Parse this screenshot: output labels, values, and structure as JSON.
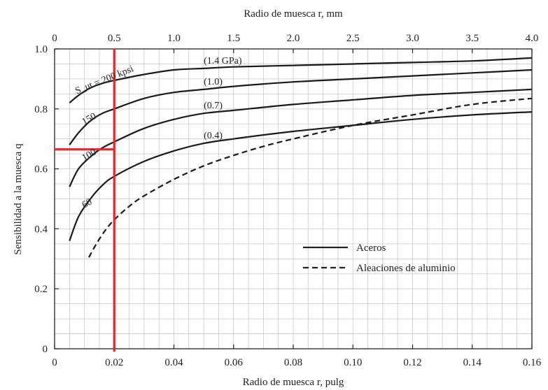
{
  "chart_data": {
    "type": "line",
    "xlabel_bottom": "Radio de muesca r, pulg",
    "xlabel_top": "Radio de muesca r, mm",
    "ylabel": "Sensibilidad a la muesca q",
    "xlim": [
      0,
      0.16
    ],
    "ylim": [
      0,
      1.0
    ],
    "x_ticks": [
      "0",
      "0.02",
      "0.04",
      "0.06",
      "0.08",
      "0.10",
      "0.12",
      "0.14",
      "0.16"
    ],
    "x_top_ticks": [
      "0",
      "0.5",
      "1.0",
      "1.5",
      "2.0",
      "2.5",
      "3.0",
      "3.5",
      "4.0"
    ],
    "y_ticks": [
      "0",
      "0.2",
      "0.4",
      "0.6",
      "0.8",
      "1.0"
    ],
    "grid": true,
    "series": [
      {
        "name": "Aceros",
        "style": "solid",
        "label_left": "S_ut = 200 kpsi",
        "label_right": "(1.4 GPa)",
        "x": [
          0.005,
          0.008,
          0.012,
          0.016,
          0.02,
          0.03,
          0.04,
          0.05,
          0.06,
          0.08,
          0.1,
          0.12,
          0.14,
          0.16
        ],
        "y": [
          0.82,
          0.845,
          0.87,
          0.885,
          0.895,
          0.915,
          0.93,
          0.935,
          0.94,
          0.945,
          0.95,
          0.955,
          0.96,
          0.97
        ]
      },
      {
        "name": "Aceros",
        "style": "solid",
        "label_left": "150",
        "label_right": "(1.0)",
        "x": [
          0.005,
          0.008,
          0.012,
          0.016,
          0.02,
          0.03,
          0.04,
          0.05,
          0.06,
          0.08,
          0.1,
          0.12,
          0.14,
          0.16
        ],
        "y": [
          0.68,
          0.72,
          0.76,
          0.785,
          0.8,
          0.835,
          0.855,
          0.865,
          0.875,
          0.89,
          0.9,
          0.91,
          0.92,
          0.93
        ]
      },
      {
        "name": "Aceros",
        "style": "solid",
        "label_left": "100",
        "label_right": "(0.7)",
        "x": [
          0.005,
          0.008,
          0.012,
          0.016,
          0.02,
          0.03,
          0.04,
          0.05,
          0.06,
          0.08,
          0.1,
          0.12,
          0.14,
          0.16
        ],
        "y": [
          0.54,
          0.6,
          0.64,
          0.67,
          0.69,
          0.735,
          0.765,
          0.785,
          0.795,
          0.815,
          0.83,
          0.845,
          0.855,
          0.865
        ]
      },
      {
        "name": "Aceros",
        "style": "solid",
        "label_left": "60",
        "label_right": "(0.4)",
        "x": [
          0.005,
          0.008,
          0.012,
          0.016,
          0.02,
          0.03,
          0.04,
          0.05,
          0.06,
          0.08,
          0.1,
          0.12,
          0.14,
          0.16
        ],
        "y": [
          0.36,
          0.44,
          0.5,
          0.545,
          0.575,
          0.625,
          0.66,
          0.685,
          0.7,
          0.725,
          0.745,
          0.765,
          0.78,
          0.79
        ]
      },
      {
        "name": "Aleaciones de aluminio",
        "style": "dashed",
        "x": [
          0.0115,
          0.014,
          0.017,
          0.02,
          0.025,
          0.03,
          0.04,
          0.05,
          0.06,
          0.07,
          0.08,
          0.1,
          0.12,
          0.14,
          0.16
        ],
        "y": [
          0.305,
          0.35,
          0.395,
          0.43,
          0.475,
          0.51,
          0.565,
          0.61,
          0.645,
          0.675,
          0.7,
          0.745,
          0.78,
          0.815,
          0.835
        ]
      }
    ],
    "annotations": [
      {
        "type": "vertical-line",
        "color": "#e8262b",
        "x": 0.02,
        "y_from": 0,
        "y_to": 1.0
      },
      {
        "type": "horizontal-line",
        "color": "#e8262b",
        "y": 0.665,
        "x_from": 0,
        "x_to": 0.02
      }
    ],
    "legend": {
      "placement": "lower-right",
      "items": [
        {
          "label": "Aceros",
          "style": "solid"
        },
        {
          "label": "Aleaciones de aluminio",
          "style": "dashed"
        }
      ]
    }
  }
}
